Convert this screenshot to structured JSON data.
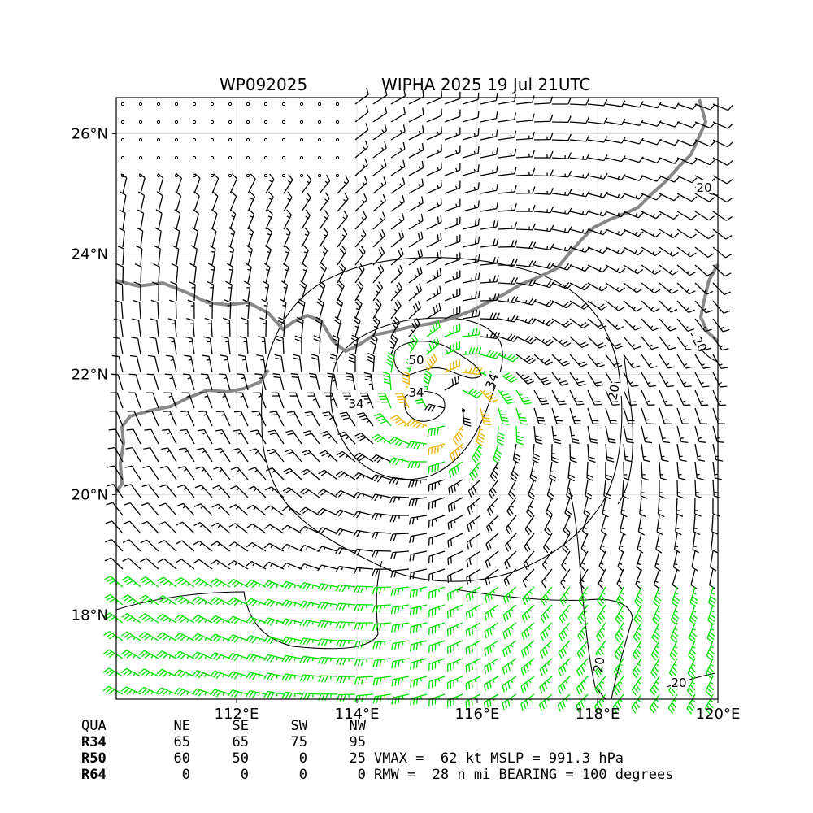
{
  "header": {
    "storm_id": "WP092025",
    "storm_title": "WIPHA 2025 19 Jul 21UTC"
  },
  "axes": {
    "x_ticks": [
      "112°E",
      "114°E",
      "116°E",
      "118°E",
      "120°E"
    ],
    "y_ticks": [
      "18°N",
      "20°N",
      "22°N",
      "24°N",
      "26°N"
    ]
  },
  "map": {
    "lon_range": [
      110.0,
      120.0
    ],
    "lat_range": [
      16.6,
      26.6
    ],
    "center": {
      "lon": 115.5,
      "lat": 21.5
    },
    "contour_labels": [
      "50",
      "34",
      "34",
      "34",
      "20",
      "20",
      "20",
      "20",
      "20",
      "20",
      "20"
    ],
    "colors": {
      "calm": "#000000",
      "below_34kt": "#000000",
      "gale_34kt": "#00e000",
      "storm_50kt": "#e8b400",
      "hurricane_64kt": "#ff6a00",
      "coastline": "#888888",
      "contour": "#000000",
      "grid": "#cccccc"
    }
  },
  "radii_table": {
    "header": [
      "QUA",
      "NE",
      "SE",
      "SW",
      "NW"
    ],
    "rows": [
      {
        "label": "R34",
        "values": [
          "65",
          "65",
          "75",
          "95"
        ]
      },
      {
        "label": "R50",
        "values": [
          "60",
          "50",
          "0",
          "25"
        ]
      },
      {
        "label": "R64",
        "values": [
          "0",
          "0",
          "0",
          "0"
        ]
      }
    ]
  },
  "stats": {
    "line1": "VMAX =  62 kt MSLP = 991.3 hPa",
    "line2": "RMW =  28 n mi BEARING = 100 degrees"
  }
}
